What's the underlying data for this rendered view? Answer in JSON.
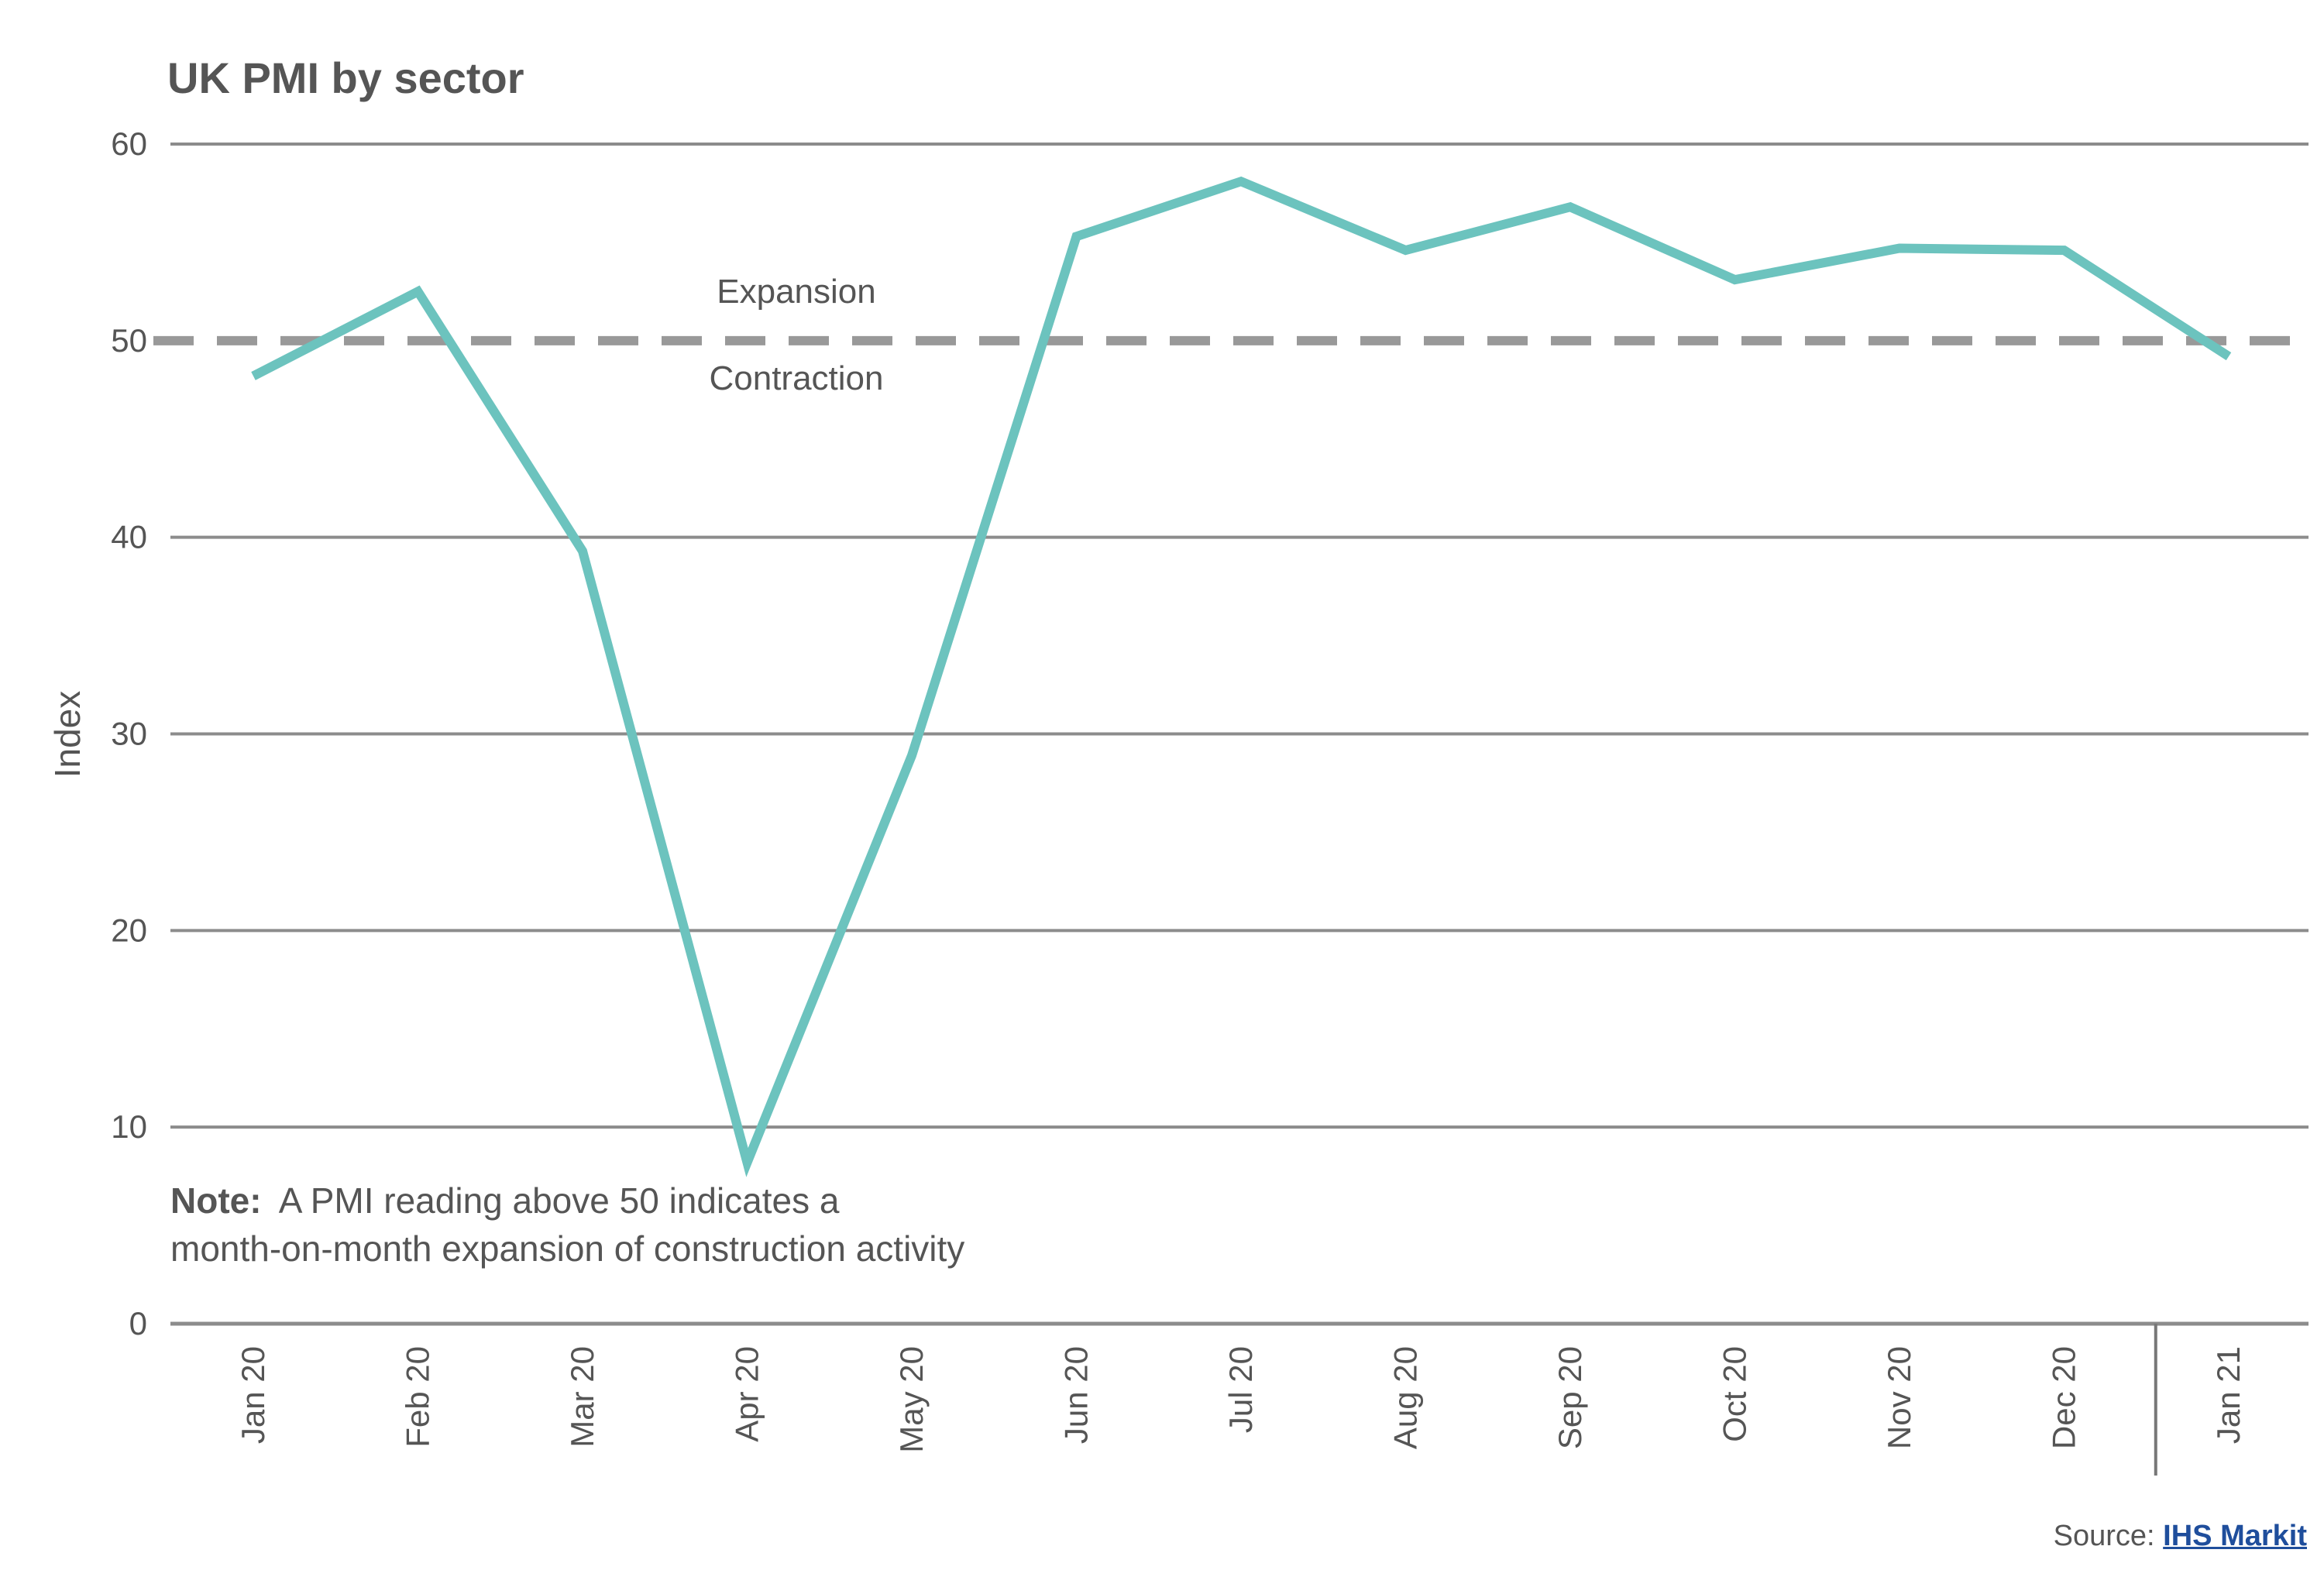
{
  "chart_data": {
    "type": "line",
    "title": "UK PMI by sector",
    "ylabel": "Index",
    "xlabel": "",
    "ylim": [
      0,
      60
    ],
    "yticks": [
      0,
      10,
      20,
      30,
      40,
      50,
      60
    ],
    "categories": [
      "Jan 20",
      "Feb 20",
      "Mar 20",
      "Apr 20",
      "May 20",
      "Jun 20",
      "Jul 20",
      "Aug 20",
      "Sep 20",
      "Oct 20",
      "Nov 20",
      "Dec 20",
      "Jan 21"
    ],
    "series": [
      {
        "values": [
          48.2,
          52.5,
          39.3,
          8.2,
          28.9,
          55.3,
          58.1,
          54.6,
          56.8,
          53.1,
          54.7,
          54.6,
          49.2
        ]
      }
    ],
    "reference_line": {
      "value": 50,
      "style": "dashed",
      "label_above": "Expansion",
      "label_below": "Contraction"
    },
    "note": {
      "bold": "Note:",
      "line1": "A PMI reading above 50 indicates a",
      "line2": "month-on-month expansion of construction activity"
    },
    "grid": true,
    "legend": "none",
    "colors": {
      "line": "#6cc3be",
      "grid": "#8c8c8c",
      "dashed": "#999999",
      "text": "#555555",
      "link": "#1f4e9c"
    }
  },
  "source": {
    "label": "Source:",
    "link_text": "IHS Markit"
  }
}
